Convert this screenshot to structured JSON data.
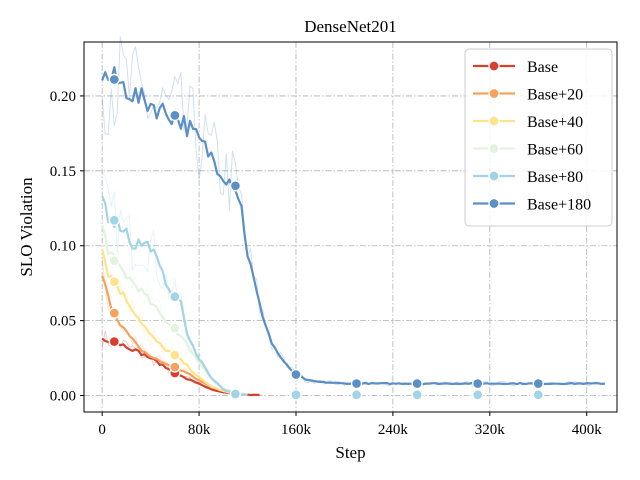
{
  "chart_data": {
    "type": "line",
    "title": "DenseNet201",
    "xlabel": "Step",
    "ylabel": "SLO Violation",
    "xlim": [
      -15000,
      425000
    ],
    "ylim": [
      -0.011,
      0.236
    ],
    "xticks": [
      0,
      80000,
      160000,
      240000,
      320000,
      400000
    ],
    "xtick_labels": [
      "0",
      "80k",
      "160k",
      "240k",
      "320k",
      "400k"
    ],
    "yticks": [
      0.0,
      0.05,
      0.1,
      0.15,
      0.2
    ],
    "ytick_labels": [
      "0.00",
      "0.05",
      "0.10",
      "0.15",
      "0.20"
    ],
    "grid": true,
    "legend": "top-right",
    "series": [
      {
        "name": "Base",
        "color": "#d7402e",
        "x": [
          0,
          10000,
          20000,
          30000,
          40000,
          50000,
          60000,
          70000,
          80000,
          90000,
          100000,
          110000,
          120000,
          130000
        ],
        "y": [
          0.038,
          0.036,
          0.033,
          0.029,
          0.025,
          0.02,
          0.015,
          0.011,
          0.008,
          0.004,
          0.002,
          0.001,
          0.0005,
          0.0003
        ],
        "marker_x": [
          10000,
          60000,
          110000
        ]
      },
      {
        "name": "Base+20",
        "color": "#f5a25c",
        "x": [
          0,
          5000,
          10000,
          20000,
          30000,
          40000,
          50000,
          60000,
          70000,
          80000,
          90000,
          100000,
          110000,
          120000
        ],
        "y": [
          0.08,
          0.065,
          0.055,
          0.042,
          0.032,
          0.026,
          0.022,
          0.019,
          0.015,
          0.01,
          0.006,
          0.003,
          0.001,
          0.0005
        ],
        "marker_x": [
          10000,
          60000,
          110000
        ]
      },
      {
        "name": "Base+40",
        "color": "#fee38f",
        "x": [
          0,
          5000,
          10000,
          20000,
          30000,
          40000,
          50000,
          60000,
          70000,
          80000,
          90000,
          100000,
          110000,
          120000
        ],
        "y": [
          0.098,
          0.082,
          0.076,
          0.064,
          0.052,
          0.04,
          0.032,
          0.027,
          0.02,
          0.012,
          0.006,
          0.003,
          0.001,
          0.0005
        ],
        "marker_x": [
          10000,
          60000,
          110000
        ]
      },
      {
        "name": "Base+60",
        "color": "#e4f3df",
        "x": [
          0,
          5000,
          10000,
          20000,
          30000,
          40000,
          50000,
          60000,
          70000,
          80000,
          90000,
          100000,
          110000,
          120000
        ],
        "y": [
          0.112,
          0.098,
          0.09,
          0.08,
          0.072,
          0.062,
          0.052,
          0.045,
          0.034,
          0.022,
          0.012,
          0.005,
          0.002,
          0.0005
        ],
        "marker_x": [
          10000,
          60000,
          110000
        ]
      },
      {
        "name": "Base+80",
        "color": "#a3d3e6",
        "x": [
          0,
          5000,
          10000,
          20000,
          25000,
          30000,
          40000,
          50000,
          60000,
          65000,
          70000,
          80000,
          90000,
          100000,
          110000,
          120000
        ],
        "y": [
          0.134,
          0.12,
          0.117,
          0.11,
          0.1,
          0.102,
          0.1,
          0.08,
          0.066,
          0.064,
          0.04,
          0.025,
          0.012,
          0.004,
          0.001,
          0.0005
        ],
        "marker_x": [
          10000,
          60000,
          110000,
          160000,
          210000,
          260000,
          310000,
          360000
        ]
      },
      {
        "name": "Base+180",
        "color": "#5b8fc5",
        "x": [
          0,
          10000,
          20000,
          30000,
          40000,
          50000,
          60000,
          70000,
          80000,
          90000,
          100000,
          110000,
          115000,
          120000,
          130000,
          140000,
          150000,
          160000,
          170000,
          180000,
          200000,
          240000,
          280000,
          320000,
          360000,
          400000,
          415000
        ],
        "y": [
          0.213,
          0.211,
          0.205,
          0.198,
          0.195,
          0.19,
          0.187,
          0.18,
          0.17,
          0.16,
          0.148,
          0.14,
          0.125,
          0.095,
          0.06,
          0.035,
          0.022,
          0.014,
          0.01,
          0.009,
          0.008,
          0.008,
          0.008,
          0.008,
          0.008,
          0.008,
          0.008
        ],
        "marker_x": [
          10000,
          60000,
          110000,
          160000,
          210000,
          260000,
          310000,
          360000
        ]
      }
    ]
  }
}
